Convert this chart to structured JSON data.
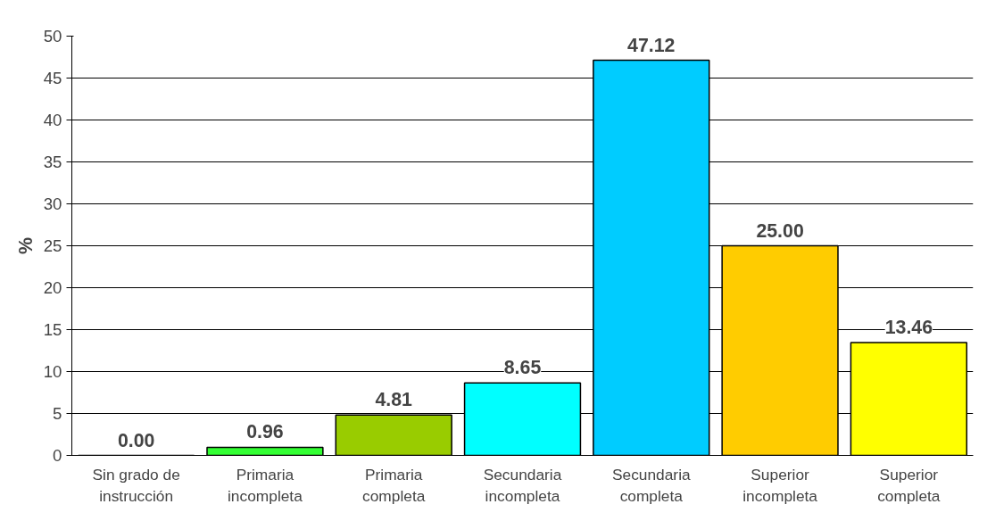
{
  "chart_data": {
    "type": "bar",
    "ylabel": "%",
    "categories": [
      "Sin grado de instrucción",
      "Primaria incompleta",
      "Primaria completa",
      "Secundaria incompleta",
      "Secundaria completa",
      "Superior incompleta",
      "Superior completa"
    ],
    "values": [
      0.0,
      0.96,
      4.81,
      8.65,
      47.12,
      25.0,
      13.46
    ],
    "value_labels": [
      "0.00",
      "0.96",
      "4.81",
      "8.65",
      "47.12",
      "25.00",
      "13.46"
    ],
    "colors": [
      "#000000",
      "#33ff33",
      "#99cc00",
      "#00ffff",
      "#00ccff",
      "#ffcc00",
      "#ffff00"
    ],
    "ylim": [
      0,
      50
    ],
    "yticks": [
      0,
      5,
      10,
      15,
      20,
      25,
      30,
      35,
      40,
      45,
      50
    ],
    "grid": "y"
  }
}
